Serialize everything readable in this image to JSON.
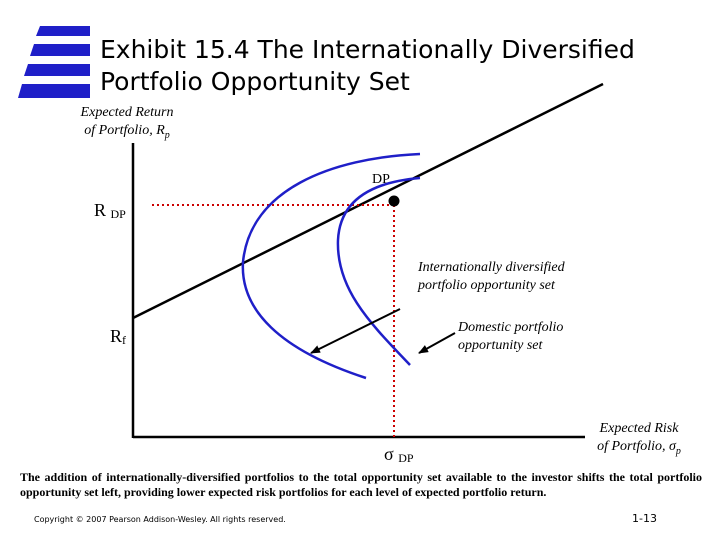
{
  "title": {
    "line1": "Exhibit 15.4  The Internationally Diversified",
    "line2": "Portfolio Opportunity Set"
  },
  "y_axis": {
    "label_line1": "Expected Return",
    "label_line2": "of Portfolio, R",
    "label_sub": "p"
  },
  "x_axis": {
    "label_line1": "Expected Risk",
    "label_line2": "of Portfolio, σ",
    "label_sub": "p"
  },
  "markers": {
    "rdp_main": "R",
    "rdp_sub": "DP",
    "rf_main": "R",
    "rf_sub": "f",
    "dp_point": "DP",
    "sigma_main": "σ",
    "sigma_sub": "DP"
  },
  "labels": {
    "intl_line1": "Internationally diversified",
    "intl_line2": "portfolio opportunity set",
    "dom_line1": "Domestic portfolio",
    "dom_line2": "opportunity set"
  },
  "caption": "The addition of internationally-diversified portfolios to the total opportunity set available to the investor shifts the total portfolio opportunity set left, providing lower expected risk portfolios for each level of expected portfolio return.",
  "footer": {
    "copyright": "Copyright © 2007 Pearson Addison-Wesley. All rights reserved.",
    "page": "1-13"
  },
  "colors": {
    "frontier": "#1f1fc8",
    "guide": "#cc0000",
    "axis": "#000000",
    "logo": "#1f1fc8"
  },
  "icons": [
    "logo-stripes-icon"
  ]
}
